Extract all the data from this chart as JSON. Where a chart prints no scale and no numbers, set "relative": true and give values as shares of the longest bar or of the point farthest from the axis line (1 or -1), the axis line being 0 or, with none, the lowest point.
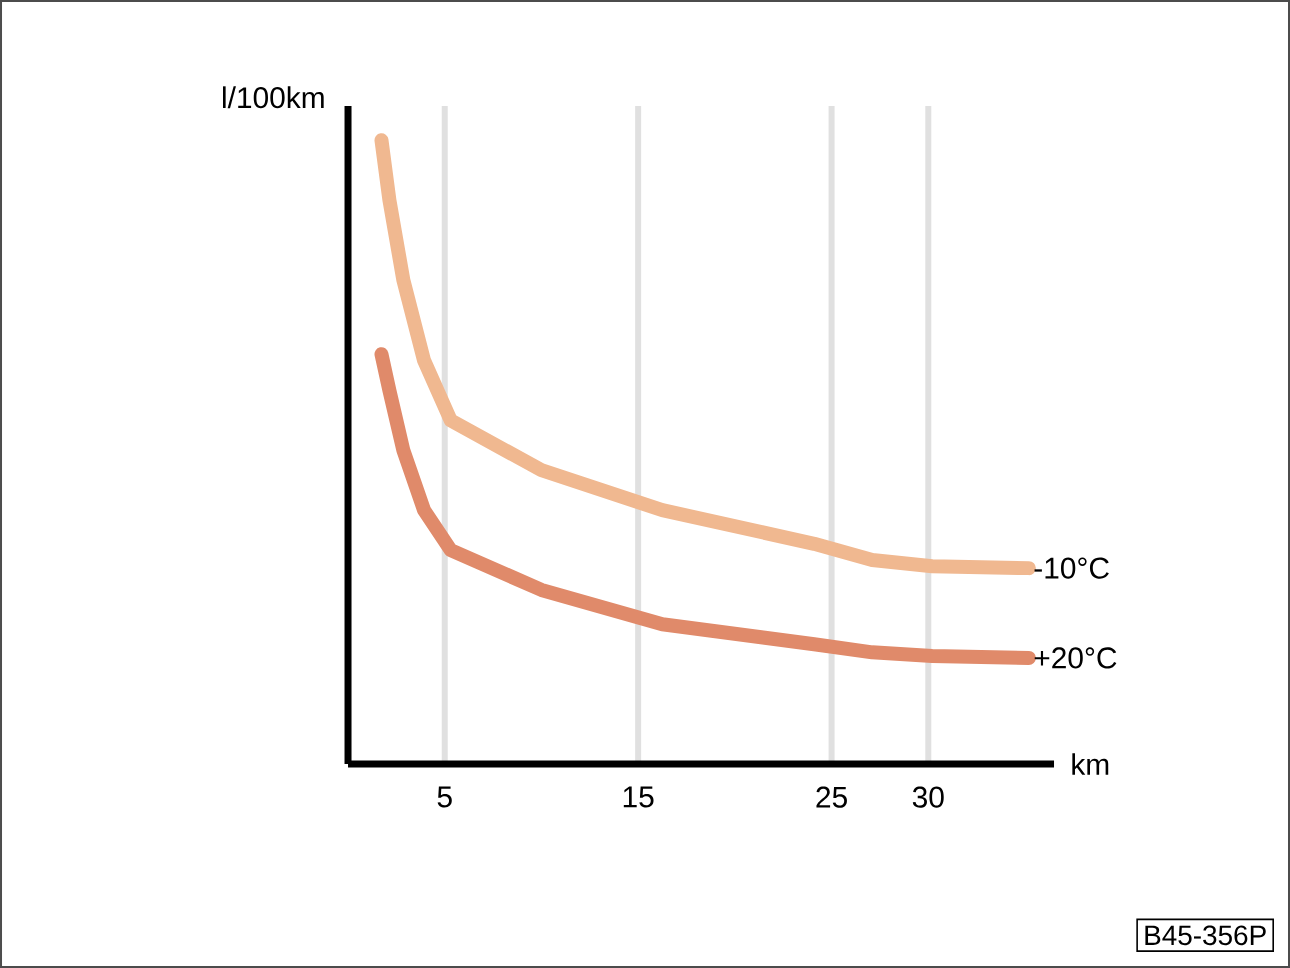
{
  "chart_data": {
    "type": "line",
    "relative": true,
    "ylabel": "l/100km",
    "xlabel": "km",
    "xlim": [
      0,
      36.5
    ],
    "xticks": [
      5,
      15,
      25,
      30
    ],
    "grid": "x",
    "series": [
      {
        "name": "-10°C",
        "color": "#f0b890",
        "x": [
          1.73,
          2.14,
          2.86,
          3.93,
          5.31,
          10,
          16.25,
          24.1,
          27.1,
          30.2,
          35.2
        ],
        "values": [
          1,
          0.904,
          0.776,
          0.647,
          0.551,
          0.471,
          0.407,
          0.353,
          0.327,
          0.317,
          0.314
        ]
      },
      {
        "name": "+20°C",
        "color": "#e08a6a",
        "x": [
          1.73,
          2.14,
          2.86,
          3.93,
          5.31,
          10,
          16.25,
          24.1,
          27.1,
          30.2,
          35.2
        ],
        "values": [
          0.657,
          0.599,
          0.503,
          0.407,
          0.343,
          0.279,
          0.224,
          0.192,
          0.179,
          0.173,
          0.17
        ]
      }
    ],
    "annotations": [
      "B45-356P"
    ]
  }
}
